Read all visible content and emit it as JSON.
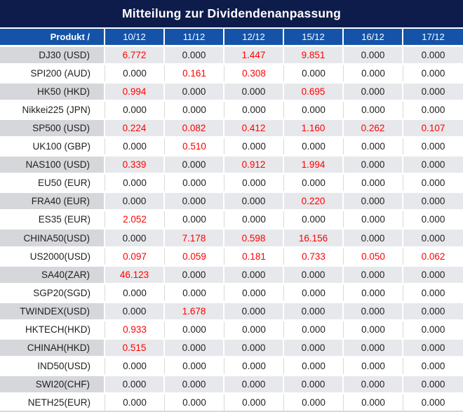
{
  "title": "Mitteilung zur Dividendenanpassung",
  "table": {
    "product_header": "Produkt /",
    "date_columns": [
      "10/12",
      "11/12",
      "12/12",
      "15/12",
      "16/12",
      "17/12"
    ],
    "rows": [
      {
        "product": "DJ30 (USD)",
        "values": [
          "6.772",
          "0.000",
          "1.447",
          "9.851",
          "0.000",
          "0.000"
        ],
        "red": [
          true,
          false,
          true,
          true,
          false,
          false
        ]
      },
      {
        "product": "SPI200 (AUD)",
        "values": [
          "0.000",
          "0.161",
          "0.308",
          "0.000",
          "0.000",
          "0.000"
        ],
        "red": [
          false,
          true,
          true,
          false,
          false,
          false
        ]
      },
      {
        "product": "HK50 (HKD)",
        "values": [
          "0.994",
          "0.000",
          "0.000",
          "0.695",
          "0.000",
          "0.000"
        ],
        "red": [
          true,
          false,
          false,
          true,
          false,
          false
        ]
      },
      {
        "product": "Nikkei225 (JPN)",
        "values": [
          "0.000",
          "0.000",
          "0.000",
          "0.000",
          "0.000",
          "0.000"
        ],
        "red": [
          false,
          false,
          false,
          false,
          false,
          false
        ]
      },
      {
        "product": "SP500 (USD)",
        "values": [
          "0.224",
          "0.082",
          "0.412",
          "1.160",
          "0.262",
          "0.107"
        ],
        "red": [
          true,
          true,
          true,
          true,
          true,
          true
        ]
      },
      {
        "product": "UK100 (GBP)",
        "values": [
          "0.000",
          "0.510",
          "0.000",
          "0.000",
          "0.000",
          "0.000"
        ],
        "red": [
          false,
          true,
          false,
          false,
          false,
          false
        ]
      },
      {
        "product": "NAS100 (USD)",
        "values": [
          "0.339",
          "0.000",
          "0.912",
          "1.994",
          "0.000",
          "0.000"
        ],
        "red": [
          true,
          false,
          true,
          true,
          false,
          false
        ]
      },
      {
        "product": "EU50 (EUR)",
        "values": [
          "0.000",
          "0.000",
          "0.000",
          "0.000",
          "0.000",
          "0.000"
        ],
        "red": [
          false,
          false,
          false,
          false,
          false,
          false
        ]
      },
      {
        "product": "FRA40 (EUR)",
        "values": [
          "0.000",
          "0.000",
          "0.000",
          "0.220",
          "0.000",
          "0.000"
        ],
        "red": [
          false,
          false,
          false,
          true,
          false,
          false
        ]
      },
      {
        "product": "ES35 (EUR)",
        "values": [
          "2.052",
          "0.000",
          "0.000",
          "0.000",
          "0.000",
          "0.000"
        ],
        "red": [
          true,
          false,
          false,
          false,
          false,
          false
        ]
      },
      {
        "product": "CHINA50(USD)",
        "values": [
          "0.000",
          "7.178",
          "0.598",
          "16.156",
          "0.000",
          "0.000"
        ],
        "red": [
          false,
          true,
          true,
          true,
          false,
          false
        ]
      },
      {
        "product": "US2000(USD)",
        "values": [
          "0.097",
          "0.059",
          "0.181",
          "0.733",
          "0.050",
          "0.062"
        ],
        "red": [
          true,
          true,
          true,
          true,
          true,
          true
        ]
      },
      {
        "product": "SA40(ZAR)",
        "values": [
          "46.123",
          "0.000",
          "0.000",
          "0.000",
          "0.000",
          "0.000"
        ],
        "red": [
          true,
          false,
          false,
          false,
          false,
          false
        ]
      },
      {
        "product": "SGP20(SGD)",
        "values": [
          "0.000",
          "0.000",
          "0.000",
          "0.000",
          "0.000",
          "0.000"
        ],
        "red": [
          false,
          false,
          false,
          false,
          false,
          false
        ]
      },
      {
        "product": "TWINDEX(USD)",
        "values": [
          "0.000",
          "1.678",
          "0.000",
          "0.000",
          "0.000",
          "0.000"
        ],
        "red": [
          false,
          true,
          false,
          false,
          false,
          false
        ]
      },
      {
        "product": "HKTECH(HKD)",
        "values": [
          "0.933",
          "0.000",
          "0.000",
          "0.000",
          "0.000",
          "0.000"
        ],
        "red": [
          true,
          false,
          false,
          false,
          false,
          false
        ]
      },
      {
        "product": "CHINAH(HKD)",
        "values": [
          "0.515",
          "0.000",
          "0.000",
          "0.000",
          "0.000",
          "0.000"
        ],
        "red": [
          true,
          false,
          false,
          false,
          false,
          false
        ]
      },
      {
        "product": "IND50(USD)",
        "values": [
          "0.000",
          "0.000",
          "0.000",
          "0.000",
          "0.000",
          "0.000"
        ],
        "red": [
          false,
          false,
          false,
          false,
          false,
          false
        ]
      },
      {
        "product": "SWI20(CHF)",
        "values": [
          "0.000",
          "0.000",
          "0.000",
          "0.000",
          "0.000",
          "0.000"
        ],
        "red": [
          false,
          false,
          false,
          false,
          false,
          false
        ]
      },
      {
        "product": "NETH25(EUR)",
        "values": [
          "0.000",
          "0.000",
          "0.000",
          "0.000",
          "0.000",
          "0.000"
        ],
        "red": [
          false,
          false,
          false,
          false,
          false,
          false
        ]
      }
    ]
  },
  "colors": {
    "title_bg": "#0d1c4a",
    "header_bg": "#1453a8",
    "row_gray_product": "#d5d7da",
    "row_gray_data": "#e7e8eb",
    "separator_light": "#d9d9d9",
    "highlight_red": "#ff0000",
    "text_dark": "#1f1f1f",
    "text_light": "#ffffff"
  }
}
